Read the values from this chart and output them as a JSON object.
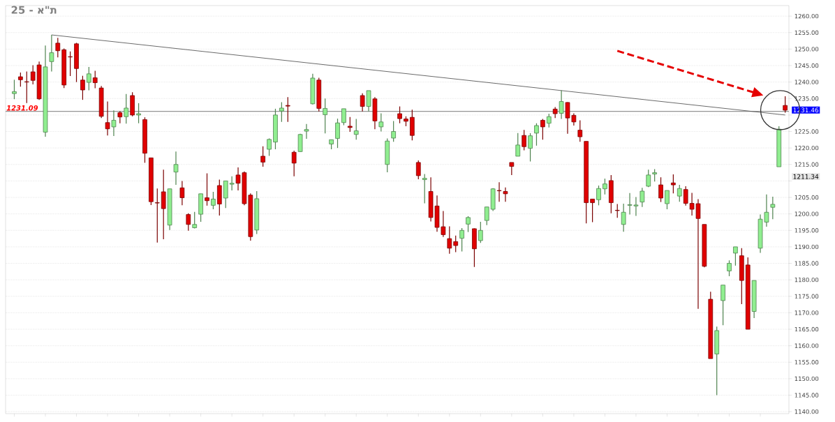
{
  "chart_data": {
    "type": "candlestick",
    "title": "25 - א\"ת",
    "categories": [
      null,
      null,
      null,
      null,
      null,
      null,
      null,
      null,
      null,
      null,
      null,
      null,
      null,
      null,
      null,
      null,
      null,
      null,
      null,
      null,
      null,
      null,
      null,
      null,
      null,
      null,
      null,
      null,
      null,
      null,
      null,
      null,
      null,
      null,
      null,
      null,
      null,
      null,
      null,
      null,
      null,
      null,
      null,
      null,
      null,
      null,
      null,
      null,
      null,
      null,
      null,
      null,
      null,
      null,
      null,
      null,
      null,
      null,
      null,
      null,
      null,
      null,
      null,
      null,
      null,
      null,
      null,
      null,
      null,
      null,
      null,
      null,
      null,
      null,
      null,
      null,
      null,
      null,
      null,
      null,
      null,
      null,
      null,
      null,
      null,
      null,
      null,
      null,
      null,
      null,
      null,
      null,
      null,
      null,
      null,
      null,
      null,
      null,
      null,
      null,
      null,
      null,
      null,
      null,
      null,
      null,
      null,
      null,
      null,
      null,
      null,
      null,
      null,
      null,
      null,
      null,
      null,
      null,
      null,
      null,
      null,
      null,
      null,
      null,
      null
    ],
    "ohlc": [
      [
        1236.5,
        1240.7,
        1234.8,
        1237.1
      ],
      [
        1241.6,
        1242.9,
        1238.6,
        1240.7
      ],
      [
        1240.1,
        1243.2,
        1233.6,
        1240.0
      ],
      [
        1243.1,
        1245.1,
        1239.3,
        1240.5
      ],
      [
        1245.2,
        1246.2,
        1234.6,
        1234.9
      ],
      [
        1224.8,
        1251.1,
        1223.4,
        1244.6
      ],
      [
        1246.2,
        1254.3,
        1243.2,
        1248.9
      ],
      [
        1251.8,
        1253.4,
        1247.5,
        1249.5
      ],
      [
        1249.8,
        1250.2,
        1238.2,
        1239.1
      ],
      [
        1247.7,
        1249.3,
        1241.8,
        1247.6
      ],
      [
        1251.6,
        1251.9,
        1240.0,
        1244.1
      ],
      [
        1240.6,
        1241.9,
        1234.6,
        1237.6
      ],
      [
        1239.9,
        1244.6,
        1237.5,
        1242.5
      ],
      [
        1241.3,
        1243.4,
        1238.1,
        1239.8
      ],
      [
        1238.2,
        1238.8,
        1229.1,
        1229.6
      ],
      [
        1227.7,
        1234.1,
        1223.8,
        1225.8
      ],
      [
        1226.4,
        1231.4,
        1223.6,
        1228.4
      ],
      [
        1230.7,
        1231.2,
        1227.5,
        1229.4
      ],
      [
        1229.5,
        1236.4,
        1227.4,
        1232.1
      ],
      [
        1235.9,
        1236.9,
        1229.6,
        1230.0
      ],
      [
        1230.0,
        1233.6,
        1227.5,
        1230.4
      ],
      [
        1228.6,
        1229.3,
        1215.5,
        1218.4
      ],
      [
        1217.0,
        1217.0,
        1202.7,
        1203.7
      ],
      [
        1203.4,
        1207.7,
        1191.3,
        1203.3
      ],
      [
        1206.7,
        1213.4,
        1192.3,
        1201.6
      ],
      [
        1196.6,
        1207.6,
        1195.1,
        1207.6
      ],
      [
        1212.7,
        1218.9,
        1208.8,
        1215.0
      ],
      [
        1207.9,
        1210.0,
        1202.6,
        1204.9
      ],
      [
        1199.8,
        1200.2,
        1194.9,
        1196.8
      ],
      [
        1195.8,
        1200.6,
        1195.6,
        1196.8
      ],
      [
        1199.9,
        1206.1,
        1197.6,
        1206.1
      ],
      [
        1204.9,
        1212.3,
        1202.5,
        1204.0
      ],
      [
        1202.6,
        1206.7,
        1201.4,
        1204.5
      ],
      [
        1208.6,
        1210.4,
        1199.5,
        1203.0
      ],
      [
        1204.8,
        1210.0,
        1201.8,
        1210.0
      ],
      [
        1209.0,
        1211.4,
        1207.1,
        1209.3
      ],
      [
        1211.8,
        1214.1,
        1207.1,
        1209.3
      ],
      [
        1212.5,
        1212.9,
        1202.6,
        1203.1
      ],
      [
        1205.7,
        1206.2,
        1191.9,
        1193.1
      ],
      [
        1195.1,
        1206.9,
        1193.9,
        1204.6
      ],
      [
        1217.5,
        1220.5,
        1214.3,
        1215.7
      ],
      [
        1219.6,
        1222.9,
        1217.6,
        1222.6
      ],
      [
        1221.8,
        1231.9,
        1219.6,
        1230.0
      ],
      [
        1231.2,
        1233.9,
        1227.9,
        1232.1
      ],
      [
        1232.9,
        1235.4,
        1227.9,
        1232.7
      ],
      [
        1218.7,
        1219.2,
        1211.4,
        1215.4
      ],
      [
        1218.9,
        1224.3,
        1218.8,
        1224.1
      ],
      [
        1225.1,
        1227.3,
        1222.8,
        1225.6
      ],
      [
        1233.4,
        1242.5,
        1233.2,
        1241.2
      ],
      [
        1240.6,
        1241.3,
        1231.1,
        1232.0
      ],
      [
        1230.1,
        1235.0,
        1224.4,
        1232.0
      ],
      [
        1221.2,
        1222.5,
        1219.6,
        1222.5
      ],
      [
        1222.9,
        1228.9,
        1220.0,
        1227.6
      ],
      [
        1227.7,
        1231.9,
        1226.9,
        1231.9
      ],
      [
        1226.6,
        1229.4,
        1224.9,
        1226.2
      ],
      [
        1224.1,
        1228.8,
        1222.5,
        1225.2
      ],
      [
        1235.9,
        1236.6,
        1231.1,
        1232.6
      ],
      [
        1232.6,
        1237.4,
        1231.1,
        1237.4
      ],
      [
        1234.9,
        1235.4,
        1225.7,
        1228.2
      ],
      [
        1226.4,
        1230.5,
        1225.0,
        1227.9
      ],
      [
        1215.0,
        1222.9,
        1212.6,
        1222.1
      ],
      [
        1223.0,
        1228.2,
        1221.9,
        1225.0
      ],
      [
        1230.4,
        1232.6,
        1227.5,
        1228.9
      ],
      [
        1228.8,
        1229.6,
        1226.6,
        1228.1
      ],
      [
        1229.3,
        1231.6,
        1222.3,
        1223.8
      ],
      [
        1215.6,
        1216.2,
        1210.5,
        1211.6
      ],
      [
        1210.4,
        1212.1,
        1203.2,
        1210.8
      ],
      [
        1206.8,
        1211.1,
        1197.7,
        1198.9
      ],
      [
        1202.4,
        1205.6,
        1194.6,
        1195.9
      ],
      [
        1196.1,
        1200.9,
        1193.0,
        1193.7
      ],
      [
        1192.5,
        1196.2,
        1187.9,
        1189.6
      ],
      [
        1191.6,
        1193.4,
        1188.4,
        1190.4
      ],
      [
        1192.6,
        1195.7,
        1188.6,
        1195.0
      ],
      [
        1196.9,
        1199.3,
        1194.5,
        1198.9
      ],
      [
        1195.5,
        1195.6,
        1183.9,
        1189.4
      ],
      [
        1191.9,
        1197.6,
        1191.2,
        1195.0
      ],
      [
        1198.0,
        1202.1,
        1196.6,
        1202.1
      ],
      [
        1201.4,
        1207.8,
        1200.9,
        1207.6
      ],
      [
        1207.1,
        1209.6,
        1203.7,
        1207.0
      ],
      [
        1206.8,
        1208.0,
        1203.7,
        1206.1
      ],
      [
        1215.6,
        1215.6,
        1211.8,
        1214.4
      ],
      [
        1217.5,
        1224.5,
        1217.5,
        1220.9
      ],
      [
        1223.8,
        1225.5,
        1219.3,
        1220.4
      ],
      [
        1219.9,
        1224.5,
        1215.9,
        1223.7
      ],
      [
        1224.5,
        1227.5,
        1220.7,
        1226.8
      ],
      [
        1228.4,
        1228.8,
        1222.5,
        1226.4
      ],
      [
        1227.5,
        1230.4,
        1226.2,
        1229.5
      ],
      [
        1231.8,
        1232.4,
        1229.1,
        1230.4
      ],
      [
        1230.5,
        1237.5,
        1228.8,
        1234.1
      ],
      [
        1233.8,
        1233.9,
        1224.3,
        1229.1
      ],
      [
        1229.9,
        1230.5,
        1226.8,
        1227.9
      ],
      [
        1225.4,
        1228.4,
        1221.9,
        1223.4
      ],
      [
        1222.0,
        1222.0,
        1197.1,
        1203.4
      ],
      [
        1204.5,
        1204.5,
        1197.5,
        1203.4
      ],
      [
        1204.3,
        1208.6,
        1202.6,
        1207.7
      ],
      [
        1207.6,
        1210.7,
        1205.9,
        1209.1
      ],
      [
        1210.1,
        1211.8,
        1200.2,
        1203.4
      ],
      [
        1201.1,
        1203.0,
        1198.8,
        1201.0
      ],
      [
        1196.8,
        1203.1,
        1194.6,
        1200.5
      ],
      [
        1202.6,
        1206.3,
        1199.8,
        1202.8
      ],
      [
        1202.4,
        1205.1,
        1199.4,
        1202.7
      ],
      [
        1203.6,
        1207.9,
        1202.1,
        1206.9
      ],
      [
        1208.4,
        1213.4,
        1208.1,
        1211.8
      ],
      [
        1212.1,
        1213.6,
        1209.8,
        1212.5
      ],
      [
        1208.8,
        1211.1,
        1203.6,
        1204.8
      ],
      [
        1203.1,
        1207.1,
        1201.4,
        1207.1
      ],
      [
        1209.4,
        1212.0,
        1206.2,
        1208.8
      ],
      [
        1205.4,
        1208.8,
        1203.7,
        1207.7
      ],
      [
        1207.4,
        1208.4,
        1202.5,
        1203.2
      ],
      [
        1203.2,
        1206.4,
        1199.5,
        1201.4
      ],
      [
        1203.1,
        1204.5,
        1171.2,
        1198.6
      ],
      [
        1196.8,
        1196.8,
        1183.8,
        1184.1
      ],
      [
        1174.1,
        1176.4,
        1156.1,
        1156.1
      ],
      [
        1157.5,
        1165.8,
        1145.0,
        1164.6
      ],
      [
        1173.7,
        1178.4,
        1166.2,
        1178.4
      ],
      [
        1182.7,
        1185.9,
        1181.1,
        1185.0
      ],
      [
        1188.1,
        1190.0,
        1184.3,
        1190.0
      ],
      [
        1187.3,
        1189.6,
        1172.6,
        1179.8
      ],
      [
        1184.5,
        1186.8,
        1165.0,
        1165.0
      ],
      [
        1170.4,
        1179.8,
        1168.4,
        1179.8
      ],
      [
        1189.6,
        1199.8,
        1188.2,
        1198.4
      ],
      [
        1197.5,
        1205.9,
        1196.1,
        1200.5
      ],
      [
        1202.0,
        1205.2,
        1198.4,
        1202.9
      ],
      [
        1214.3,
        1226.6,
        1214.3,
        1225.7
      ],
      [
        1232.9,
        1235.7,
        1230.7,
        1231.46
      ]
    ],
    "colors": [
      "#90ee90",
      "#e00000",
      "#e00000",
      "#e00000",
      "#e00000",
      "#90ee90",
      "#90ee90",
      "#e00000",
      "#e00000",
      "#e00000",
      "#e00000",
      "#e00000",
      "#90ee90",
      "#e00000",
      "#e00000",
      "#e00000",
      "#90ee90",
      "#e00000",
      "#90ee90",
      "#e00000",
      "#90ee90",
      "#e00000",
      "#e00000",
      "#e00000",
      "#e00000",
      "#90ee90",
      "#90ee90",
      "#e00000",
      "#e00000",
      "#90ee90",
      "#90ee90",
      "#e00000",
      "#90ee90",
      "#e00000",
      "#90ee90",
      "#90ee90",
      "#e00000",
      "#e00000",
      "#e00000",
      "#90ee90",
      "#e00000",
      "#90ee90",
      "#90ee90",
      "#90ee90",
      "#e00000",
      "#e00000",
      "#90ee90",
      "#90ee90",
      "#90ee90",
      "#e00000",
      "#90ee90",
      "#90ee90",
      "#90ee90",
      "#90ee90",
      "#e00000",
      "#90ee90",
      "#e00000",
      "#90ee90",
      "#e00000",
      "#90ee90",
      "#90ee90",
      "#90ee90",
      "#e00000",
      "#e00000",
      "#e00000",
      "#e00000",
      "#90ee90",
      "#e00000",
      "#e00000",
      "#e00000",
      "#e00000",
      "#e00000",
      "#90ee90",
      "#90ee90",
      "#e00000",
      "#90ee90",
      "#90ee90",
      "#90ee90",
      "#e00000",
      "#e00000",
      "#e00000",
      "#90ee90",
      "#e00000",
      "#90ee90",
      "#90ee90",
      "#e00000",
      "#90ee90",
      "#e00000",
      "#90ee90",
      "#e00000",
      "#e00000",
      "#e00000",
      "#e00000",
      "#e00000",
      "#90ee90",
      "#90ee90",
      "#e00000",
      "#e00000",
      "#90ee90",
      "#90ee90",
      "#90ee90",
      "#90ee90",
      "#90ee90",
      "#90ee90",
      "#e00000",
      "#90ee90",
      "#e00000",
      "#90ee90",
      "#e00000",
      "#e00000",
      "#e00000",
      "#e00000",
      "#e00000",
      "#90ee90",
      "#90ee90",
      "#90ee90",
      "#90ee90",
      "#e00000",
      "#e00000",
      "#90ee90",
      "#90ee90",
      "#90ee90",
      "#90ee90",
      "#90ee90",
      "#e00000"
    ],
    "series": [
      {
        "type": "line",
        "color": "#444444",
        "values": [
          null,
          null,
          null,
          null,
          null,
          null,
          1254.3,
          null,
          null,
          null,
          null,
          null,
          null,
          null,
          null,
          null,
          null,
          null,
          null,
          null,
          null,
          null,
          null,
          null,
          null,
          null,
          null,
          null,
          null,
          null,
          null,
          null,
          null,
          null,
          null,
          null,
          null,
          null,
          null,
          null,
          null,
          null,
          null,
          null,
          null,
          null,
          null,
          null,
          null,
          null,
          null,
          null,
          null,
          null,
          null,
          null,
          null,
          null,
          null,
          null,
          null,
          null,
          null,
          null,
          null,
          null,
          null,
          null,
          null,
          null,
          null,
          null,
          null,
          null,
          null,
          null,
          null,
          null,
          null,
          null,
          null,
          null,
          null,
          null,
          null,
          null,
          null,
          null,
          null,
          null,
          null,
          null,
          null,
          null,
          null,
          null,
          null,
          null,
          null,
          null,
          null,
          null,
          null,
          null,
          null,
          null,
          null,
          null,
          null,
          null,
          null,
          null,
          null,
          null,
          null,
          null,
          null,
          null,
          null,
          null,
          null,
          null,
          null,
          null,
          1230.0
        ]
      }
    ],
    "ylim": [
      1139.4,
      1263.2
    ],
    "yticks": [
      {
        "value": 1140,
        "label": "1140.00"
      },
      {
        "value": 1145,
        "label": "1145.00"
      },
      {
        "value": 1150,
        "label": "1150.00"
      },
      {
        "value": 1155,
        "label": "1155.00"
      },
      {
        "value": 1160,
        "label": "1160.00"
      },
      {
        "value": 1165,
        "label": "1165.00"
      },
      {
        "value": 1170,
        "label": "1170.00"
      },
      {
        "value": 1175,
        "label": "1175.00"
      },
      {
        "value": 1180,
        "label": "1180.00"
      },
      {
        "value": 1185,
        "label": "1185.00"
      },
      {
        "value": 1190,
        "label": "1190.00"
      },
      {
        "value": 1195,
        "label": "1195.00"
      },
      {
        "value": 1200,
        "label": "1200.00"
      },
      {
        "value": 1205,
        "label": "1205.00"
      },
      {
        "value": 1210,
        "label": null
      },
      {
        "value": 1215,
        "label": "1215.00"
      },
      {
        "value": 1220,
        "label": "1220.00"
      },
      {
        "value": 1225,
        "label": "1225.00"
      },
      {
        "value": 1230,
        "label": null
      },
      {
        "value": 1235,
        "label": "1235.00"
      },
      {
        "value": 1240,
        "label": "1240.00"
      },
      {
        "value": 1245,
        "label": "1245.00"
      },
      {
        "value": 1250,
        "label": "1250.00"
      },
      {
        "value": 1255,
        "label": "1255.00"
      },
      {
        "value": 1260,
        "label": "1260.00"
      }
    ],
    "ref_lines": [
      {
        "axis": "y",
        "value": 1231.09,
        "label": "1231.09",
        "color": "#555555"
      }
    ],
    "annotations": [
      "1231.46",
      "1211.34"
    ],
    "grid": "y"
  }
}
